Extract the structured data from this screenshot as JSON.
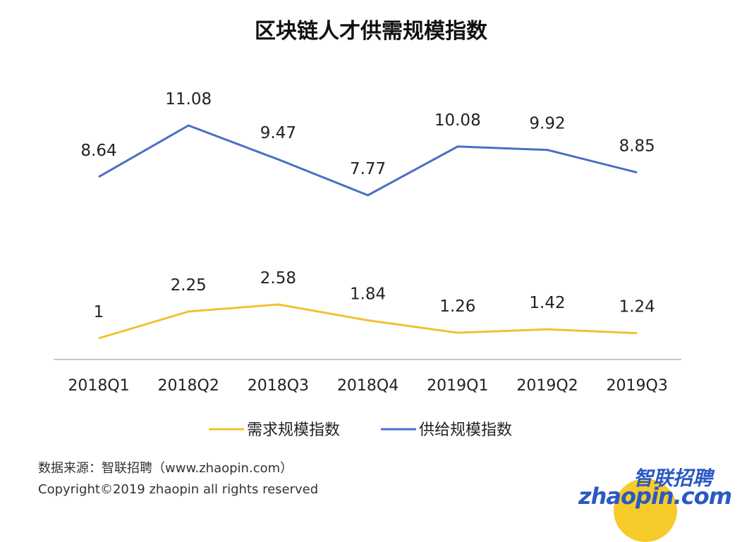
{
  "chart_data": {
    "type": "line",
    "title": "区块链人才供需规模指数",
    "categories": [
      "2018Q1",
      "2018Q2",
      "2018Q3",
      "2018Q4",
      "2019Q1",
      "2019Q2",
      "2019Q3"
    ],
    "series": [
      {
        "name": "需求规模指数",
        "color": "#f2c12e",
        "values": [
          1,
          2.25,
          2.58,
          1.84,
          1.26,
          1.42,
          1.24
        ]
      },
      {
        "name": "供给规模指数",
        "color": "#4a6fc4",
        "values": [
          8.64,
          11.08,
          9.47,
          7.77,
          10.08,
          9.92,
          8.85
        ]
      }
    ],
    "data_labels": true,
    "legend": "bottom",
    "grid": false,
    "y_axis_visible": false
  },
  "footer": {
    "source": "数据来源：智联招聘（www.zhaopin.com）",
    "copyright": "Copyright©2019 zhaopin all rights reserved"
  },
  "logo": {
    "text_cn": "智联招聘",
    "text_en": "zhaopin.com"
  }
}
